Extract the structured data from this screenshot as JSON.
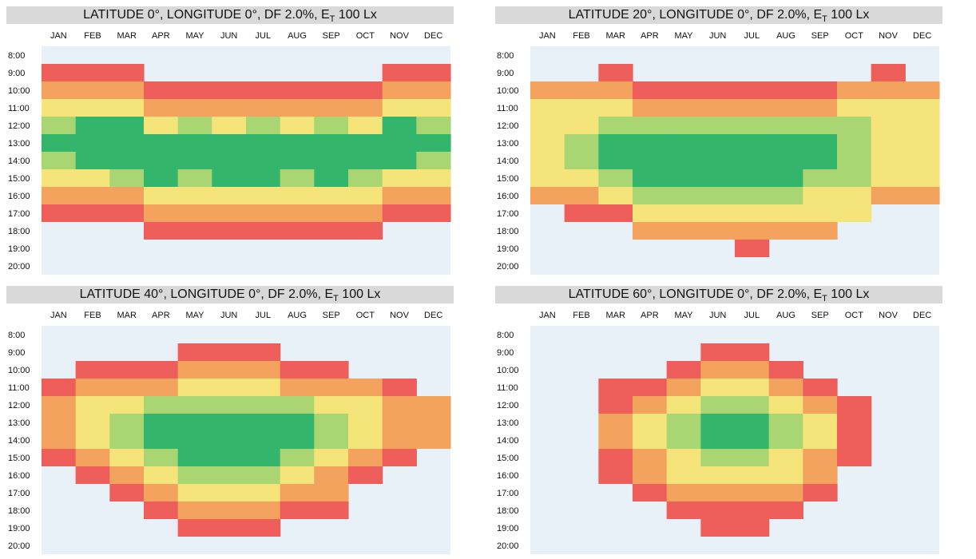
{
  "months": [
    "JAN",
    "FEB",
    "MAR",
    "APR",
    "MAY",
    "JUN",
    "JUL",
    "AUG",
    "SEP",
    "OCT",
    "NOV",
    "DEC"
  ],
  "hours": [
    "8:00",
    "9:00",
    "10:00",
    "11:00",
    "12:00",
    "13:00",
    "14:00",
    "15:00",
    "16:00",
    "17:00",
    "18:00",
    "19:00",
    "20:00"
  ],
  "colors": {
    "background": "#e8f1f8",
    "red": "#ee5f5b",
    "orange": "#f4a35e",
    "yellow": "#f5e47a",
    "green": "#33b56c"
  },
  "chart_data": [
    {
      "type": "heatmap",
      "title": "LATITUDE 0°, LONGITUDE 0°, DF 2.0%, ET 100 Lx",
      "title_main": "LATITUDE 0°, LONGITUDE 0°, DF 2.0%, E",
      "title_sub": "T",
      "title_tail": " 100 Lx",
      "x_categories": [
        "JAN",
        "FEB",
        "MAR",
        "APR",
        "MAY",
        "JUN",
        "JUL",
        "AUG",
        "SEP",
        "OCT",
        "NOV",
        "DEC"
      ],
      "y_categories": [
        "8:00",
        "9:00",
        "10:00",
        "11:00",
        "12:00",
        "13:00",
        "14:00",
        "15:00",
        "16:00",
        "17:00",
        "18:00",
        "19:00",
        "20:00"
      ],
      "values": [
        [
          0,
          0,
          0,
          0,
          0,
          0,
          0,
          0,
          0,
          0,
          0,
          0
        ],
        [
          1,
          1,
          1,
          0,
          0,
          0,
          0,
          0,
          0,
          0,
          1,
          1
        ],
        [
          2,
          2,
          2,
          1,
          1,
          1,
          1,
          1,
          1,
          1,
          2,
          2
        ],
        [
          3,
          3,
          3,
          2,
          2,
          2,
          2,
          2,
          2,
          2,
          3,
          3
        ],
        [
          4,
          5,
          5,
          3,
          4,
          3,
          4,
          3,
          4,
          3,
          5,
          4
        ],
        [
          5,
          5,
          5,
          5,
          5,
          5,
          5,
          5,
          5,
          5,
          5,
          5
        ],
        [
          4,
          5,
          5,
          5,
          5,
          5,
          5,
          5,
          5,
          5,
          5,
          4
        ],
        [
          3,
          3,
          4,
          5,
          4,
          5,
          5,
          4,
          5,
          4,
          3,
          3
        ],
        [
          2,
          2,
          2,
          3,
          3,
          3,
          3,
          3,
          3,
          3,
          2,
          2
        ],
        [
          1,
          1,
          1,
          2,
          2,
          2,
          2,
          2,
          2,
          2,
          1,
          1
        ],
        [
          0,
          0,
          0,
          1,
          1,
          1,
          1,
          1,
          1,
          1,
          0,
          0
        ],
        [
          0,
          0,
          0,
          0,
          0,
          0,
          0,
          0,
          0,
          0,
          0,
          0
        ],
        [
          0,
          0,
          0,
          0,
          0,
          0,
          0,
          0,
          0,
          0,
          0,
          0
        ]
      ]
    },
    {
      "type": "heatmap",
      "title": "LATITUDE 20°, LONGITUDE 0°, DF 2.0%, ET 100 Lx",
      "title_main": "LATITUDE 20°, LONGITUDE 0°, DF 2.0%, E",
      "title_sub": "T",
      "title_tail": " 100 Lx",
      "x_categories": [
        "JAN",
        "FEB",
        "MAR",
        "APR",
        "MAY",
        "JUN",
        "JUL",
        "AUG",
        "SEP",
        "OCT",
        "NOV",
        "DEC"
      ],
      "y_categories": [
        "8:00",
        "9:00",
        "10:00",
        "11:00",
        "12:00",
        "13:00",
        "14:00",
        "15:00",
        "16:00",
        "17:00",
        "18:00",
        "19:00",
        "20:00"
      ],
      "values": [
        [
          0,
          0,
          0,
          0,
          0,
          0,
          0,
          0,
          0,
          0,
          0,
          0
        ],
        [
          0,
          0,
          1,
          0,
          0,
          0,
          0,
          0,
          0,
          0,
          1,
          0
        ],
        [
          2,
          2,
          2,
          1,
          1,
          1,
          1,
          1,
          1,
          2,
          2,
          2
        ],
        [
          3,
          3,
          3,
          2,
          2,
          2,
          2,
          2,
          2,
          3,
          3,
          3
        ],
        [
          3,
          3,
          4,
          4,
          4,
          4,
          4,
          4,
          4,
          4,
          3,
          3
        ],
        [
          3,
          4,
          5,
          5,
          5,
          5,
          5,
          5,
          5,
          4,
          3,
          3
        ],
        [
          3,
          4,
          5,
          5,
          5,
          5,
          5,
          5,
          5,
          4,
          3,
          3
        ],
        [
          3,
          3,
          4,
          5,
          5,
          5,
          5,
          5,
          4,
          4,
          3,
          3
        ],
        [
          2,
          2,
          3,
          4,
          4,
          4,
          4,
          4,
          3,
          3,
          2,
          2
        ],
        [
          0,
          1,
          1,
          3,
          3,
          3,
          3,
          3,
          3,
          3,
          0,
          0
        ],
        [
          0,
          0,
          0,
          2,
          2,
          2,
          2,
          2,
          2,
          0,
          0,
          0
        ],
        [
          0,
          0,
          0,
          0,
          0,
          0,
          1,
          0,
          0,
          0,
          0,
          0
        ],
        [
          0,
          0,
          0,
          0,
          0,
          0,
          0,
          0,
          0,
          0,
          0,
          0
        ]
      ]
    },
    {
      "type": "heatmap",
      "title": "LATITUDE 40°, LONGITUDE 0°, DF 2.0%, ET 100 Lx",
      "title_main": "LATITUDE 40°, LONGITUDE 0°, DF 2.0%, E",
      "title_sub": "T",
      "title_tail": " 100 Lx",
      "x_categories": [
        "JAN",
        "FEB",
        "MAR",
        "APR",
        "MAY",
        "JUN",
        "JUL",
        "AUG",
        "SEP",
        "OCT",
        "NOV",
        "DEC"
      ],
      "y_categories": [
        "8:00",
        "9:00",
        "10:00",
        "11:00",
        "12:00",
        "13:00",
        "14:00",
        "15:00",
        "16:00",
        "17:00",
        "18:00",
        "19:00",
        "20:00"
      ],
      "values": [
        [
          0,
          0,
          0,
          0,
          0,
          0,
          0,
          0,
          0,
          0,
          0,
          0
        ],
        [
          0,
          0,
          0,
          0,
          1,
          1,
          1,
          0,
          0,
          0,
          0,
          0
        ],
        [
          0,
          1,
          1,
          1,
          2,
          2,
          2,
          1,
          1,
          0,
          0,
          0
        ],
        [
          1,
          2,
          2,
          2,
          3,
          3,
          3,
          2,
          2,
          2,
          1,
          0
        ],
        [
          2,
          3,
          3,
          4,
          4,
          4,
          4,
          4,
          3,
          3,
          2,
          2
        ],
        [
          2,
          3,
          4,
          5,
          5,
          5,
          5,
          5,
          4,
          3,
          2,
          2
        ],
        [
          2,
          3,
          4,
          5,
          5,
          5,
          5,
          5,
          4,
          3,
          2,
          2
        ],
        [
          1,
          2,
          3,
          4,
          5,
          5,
          5,
          4,
          3,
          2,
          1,
          0
        ],
        [
          0,
          1,
          2,
          3,
          4,
          4,
          4,
          3,
          2,
          1,
          0,
          0
        ],
        [
          0,
          0,
          1,
          2,
          3,
          3,
          3,
          2,
          2,
          0,
          0,
          0
        ],
        [
          0,
          0,
          0,
          1,
          2,
          2,
          2,
          1,
          1,
          0,
          0,
          0
        ],
        [
          0,
          0,
          0,
          0,
          1,
          1,
          1,
          0,
          0,
          0,
          0,
          0
        ],
        [
          0,
          0,
          0,
          0,
          0,
          0,
          0,
          0,
          0,
          0,
          0,
          0
        ]
      ]
    },
    {
      "type": "heatmap",
      "title": "LATITUDE 60°, LONGITUDE 0°, DF 2.0%, ET 100 Lx",
      "title_main": "LATITUDE 60°, LONGITUDE 0°, DF 2.0%, E",
      "title_sub": "T",
      "title_tail": " 100 Lx",
      "x_categories": [
        "JAN",
        "FEB",
        "MAR",
        "APR",
        "MAY",
        "JUN",
        "JUL",
        "AUG",
        "SEP",
        "OCT",
        "NOV",
        "DEC"
      ],
      "y_categories": [
        "8:00",
        "9:00",
        "10:00",
        "11:00",
        "12:00",
        "13:00",
        "14:00",
        "15:00",
        "16:00",
        "17:00",
        "18:00",
        "19:00",
        "20:00"
      ],
      "values": [
        [
          0,
          0,
          0,
          0,
          0,
          0,
          0,
          0,
          0,
          0,
          0,
          0
        ],
        [
          0,
          0,
          0,
          0,
          0,
          1,
          1,
          0,
          0,
          0,
          0,
          0
        ],
        [
          0,
          0,
          0,
          0,
          1,
          2,
          2,
          1,
          0,
          0,
          0,
          0
        ],
        [
          0,
          0,
          1,
          1,
          2,
          3,
          3,
          2,
          1,
          0,
          0,
          0
        ],
        [
          0,
          0,
          1,
          2,
          3,
          4,
          4,
          3,
          2,
          1,
          0,
          0
        ],
        [
          0,
          0,
          2,
          3,
          4,
          5,
          5,
          4,
          3,
          1,
          0,
          0
        ],
        [
          0,
          0,
          2,
          3,
          4,
          5,
          5,
          4,
          3,
          1,
          0,
          0
        ],
        [
          0,
          0,
          1,
          2,
          3,
          4,
          4,
          3,
          2,
          1,
          0,
          0
        ],
        [
          0,
          0,
          1,
          2,
          3,
          3,
          3,
          3,
          2,
          0,
          0,
          0
        ],
        [
          0,
          0,
          0,
          1,
          2,
          2,
          2,
          2,
          1,
          0,
          0,
          0
        ],
        [
          0,
          0,
          0,
          0,
          1,
          1,
          1,
          1,
          0,
          0,
          0,
          0
        ],
        [
          0,
          0,
          0,
          0,
          0,
          1,
          1,
          0,
          0,
          0,
          0,
          0
        ],
        [
          0,
          0,
          0,
          0,
          0,
          0,
          0,
          0,
          0,
          0,
          0,
          0
        ]
      ]
    }
  ]
}
